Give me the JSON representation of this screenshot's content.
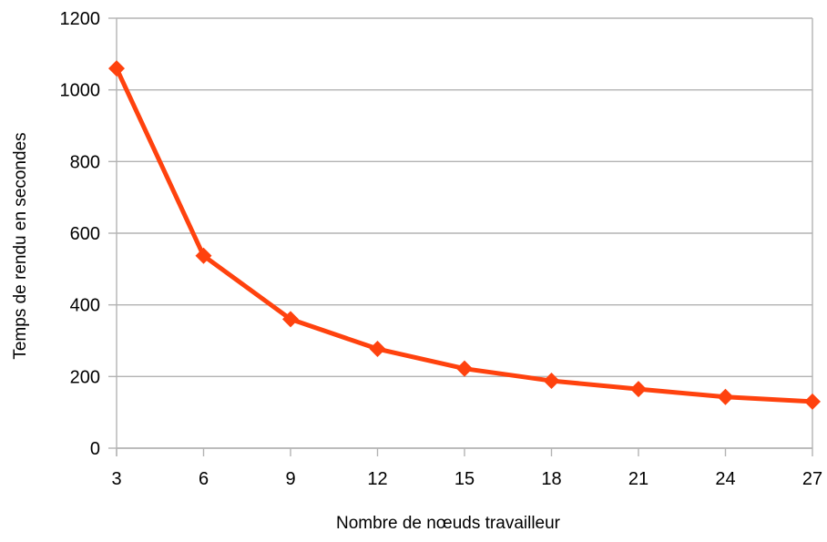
{
  "chart_data": {
    "type": "line",
    "xlabel": "Nombre de nœuds travailleur",
    "ylabel": "Temps de rendu en secondes",
    "x": [
      3,
      6,
      9,
      12,
      15,
      18,
      21,
      24,
      27
    ],
    "series": [
      {
        "values": [
          1060,
          537,
          360,
          277,
          222,
          188,
          165,
          143,
          130
        ]
      }
    ],
    "xlim": [
      3,
      27
    ],
    "ylim": [
      0,
      1200
    ],
    "xticks": [
      "3",
      "6",
      "9",
      "12",
      "15",
      "18",
      "21",
      "24",
      "27"
    ],
    "yticks": [
      "0",
      "200",
      "400",
      "600",
      "800",
      "1000",
      "1200"
    ],
    "grid": "horizontal",
    "legend": "none",
    "colors": {
      "series": "#ff420e",
      "grid": "#b3b3b3",
      "axis": "#b3b3b3"
    },
    "marker": "diamond"
  }
}
